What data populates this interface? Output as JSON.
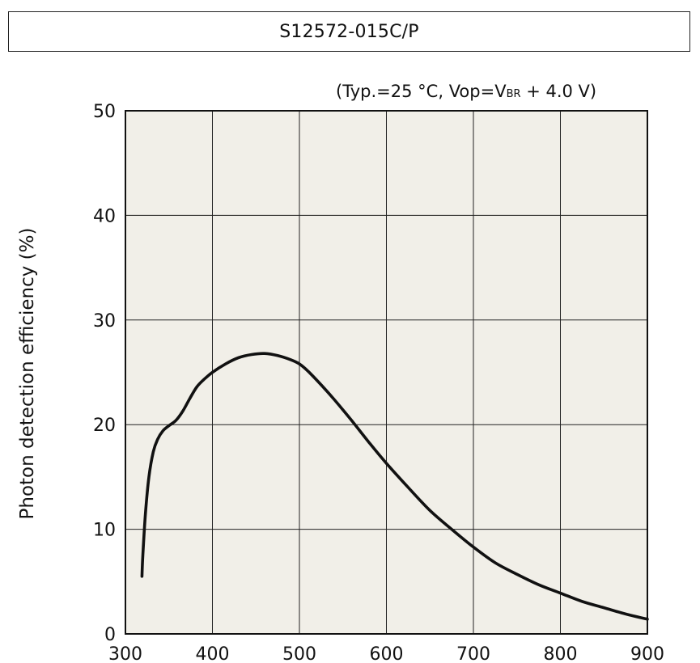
{
  "chart_data": {
    "type": "line",
    "title": "S12572-015C/P",
    "conditions": {
      "prefix": "(Typ.=25 °C, Vop=V",
      "subscript": "BR",
      "suffix": " + 4.0 V)"
    },
    "xlabel": "",
    "ylabel": "Photon detection efficiency (%)",
    "xlim": [
      300,
      900
    ],
    "ylim": [
      0,
      50
    ],
    "x_ticks": [
      "300",
      "400",
      "500",
      "600",
      "700",
      "800",
      "900"
    ],
    "y_ticks": [
      "0",
      "10",
      "20",
      "30",
      "40",
      "50"
    ],
    "grid": true,
    "plot_background": "#f1efe8",
    "line_color": "#111111",
    "series": [
      {
        "x": [
          319,
          320,
          323,
          327,
          332,
          337,
          343,
          350,
          358,
          366,
          374,
          382,
          390,
          400,
          415,
          430,
          445,
          460,
          475,
          490,
          500,
          510,
          525,
          540,
          560,
          580,
          600,
          625,
          650,
          675,
          700,
          725,
          750,
          775,
          800,
          825,
          850,
          875,
          900
        ],
        "y": [
          5.5,
          7.5,
          11.5,
          15.0,
          17.4,
          18.6,
          19.4,
          19.9,
          20.4,
          21.3,
          22.5,
          23.6,
          24.3,
          25.0,
          25.8,
          26.4,
          26.7,
          26.8,
          26.6,
          26.2,
          25.8,
          25.1,
          23.8,
          22.4,
          20.4,
          18.3,
          16.3,
          14.0,
          11.8,
          10.0,
          8.3,
          6.8,
          5.7,
          4.7,
          3.9,
          3.1,
          2.5,
          1.9,
          1.4
        ]
      }
    ]
  }
}
